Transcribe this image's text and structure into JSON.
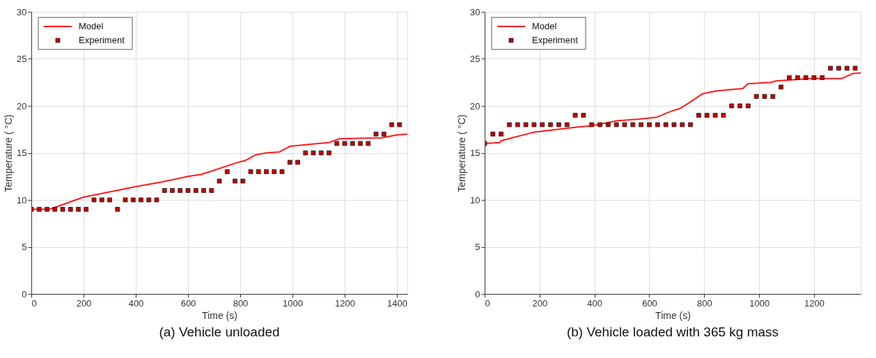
{
  "chart_data": [
    {
      "type": "line",
      "title": "(a) Vehicle unloaded",
      "xlabel": "Time (s)",
      "ylabel": "Temperature ( °C)",
      "xlim": [
        0,
        1440
      ],
      "xticks": [
        0,
        200,
        400,
        600,
        800,
        1000,
        1200,
        1400
      ],
      "ylim": [
        0,
        30
      ],
      "yticks": [
        0,
        5,
        10,
        15,
        20,
        25,
        30
      ],
      "grid": true,
      "legend": "top left",
      "series": [
        {
          "name": "Model",
          "type": "line",
          "color": "#ff1a1a",
          "line_style": "solid",
          "marker": "none",
          "x": [
            0,
            70,
            200,
            300,
            400,
            500,
            600,
            650,
            700,
            780,
            820,
            860,
            900,
            950,
            990,
            1100,
            1140,
            1180,
            1250,
            1340,
            1400,
            1440
          ],
          "values": [
            9,
            9,
            10.3,
            10.85,
            11.4,
            11.9,
            12.5,
            12.7,
            13.15,
            13.9,
            14.2,
            14.8,
            15.0,
            15.1,
            15.7,
            16.0,
            16.1,
            16.5,
            16.55,
            16.6,
            16.9,
            17.0
          ]
        },
        {
          "name": "Experiment",
          "type": "scatter",
          "color": "#c00000",
          "marker": "square",
          "x": [
            0,
            30,
            60,
            90,
            120,
            150,
            180,
            210,
            240,
            270,
            300,
            330,
            360,
            390,
            420,
            450,
            480,
            510,
            540,
            570,
            600,
            630,
            660,
            690,
            720,
            750,
            780,
            810,
            840,
            870,
            900,
            930,
            960,
            990,
            1020,
            1050,
            1080,
            1110,
            1140,
            1170,
            1200,
            1230,
            1260,
            1290,
            1320,
            1350,
            1380,
            1410
          ],
          "values": [
            9,
            9,
            9,
            9,
            9,
            9,
            9,
            9,
            10,
            10,
            10,
            9,
            10,
            10,
            10,
            10,
            10,
            11,
            11,
            11,
            11,
            11,
            11,
            11,
            12,
            13,
            12,
            12,
            13,
            13,
            13,
            13,
            13,
            14,
            14,
            15,
            15,
            15,
            15,
            16,
            16,
            16,
            16,
            16,
            17,
            17,
            18,
            18
          ]
        }
      ]
    },
    {
      "type": "line",
      "title": "(b) Vehicle loaded with 365 kg mass",
      "xlabel": "Time (s)",
      "ylabel": "Temperature ( °C)",
      "xlim": [
        0,
        1370
      ],
      "xticks": [
        0,
        200,
        400,
        600,
        800,
        1000,
        1200
      ],
      "ylim": [
        0,
        30
      ],
      "yticks": [
        0,
        5,
        10,
        15,
        20,
        25,
        30
      ],
      "grid": true,
      "legend": "top left",
      "series": [
        {
          "name": "Model",
          "type": "line",
          "color": "#ff1a1a",
          "line_style": "solid",
          "marker": "none",
          "x": [
            0,
            55,
            60,
            180,
            308,
            395,
            480,
            564,
            628,
            677,
            710,
            744,
            795,
            846,
            941,
            959,
            1044,
            1061,
            1190,
            1300,
            1343,
            1370
          ],
          "values": [
            16.0,
            16.1,
            16.3,
            17.2,
            17.65,
            17.9,
            18.4,
            18.6,
            18.8,
            19.4,
            19.7,
            20.3,
            21.3,
            21.6,
            21.85,
            22.35,
            22.5,
            22.65,
            22.9,
            22.9,
            23.45,
            23.5
          ]
        },
        {
          "name": "Experiment",
          "type": "scatter",
          "color": "#c00000",
          "marker": "square",
          "x": [
            0,
            30,
            60,
            90,
            120,
            150,
            180,
            210,
            240,
            270,
            300,
            330,
            360,
            390,
            420,
            450,
            480,
            510,
            540,
            570,
            600,
            630,
            660,
            690,
            720,
            750,
            780,
            810,
            840,
            870,
            900,
            930,
            960,
            990,
            1020,
            1050,
            1080,
            1110,
            1140,
            1170,
            1200,
            1230,
            1260,
            1290,
            1320,
            1350
          ],
          "values": [
            16,
            17,
            17,
            18,
            18,
            18,
            18,
            18,
            18,
            18,
            18,
            19,
            19,
            18,
            18,
            18,
            18,
            18,
            18,
            18,
            18,
            18,
            18,
            18,
            18,
            18,
            19,
            19,
            19,
            19,
            20,
            20,
            20,
            21,
            21,
            21,
            22,
            23,
            23,
            23,
            23,
            23,
            24,
            24,
            24,
            24
          ]
        }
      ]
    }
  ]
}
